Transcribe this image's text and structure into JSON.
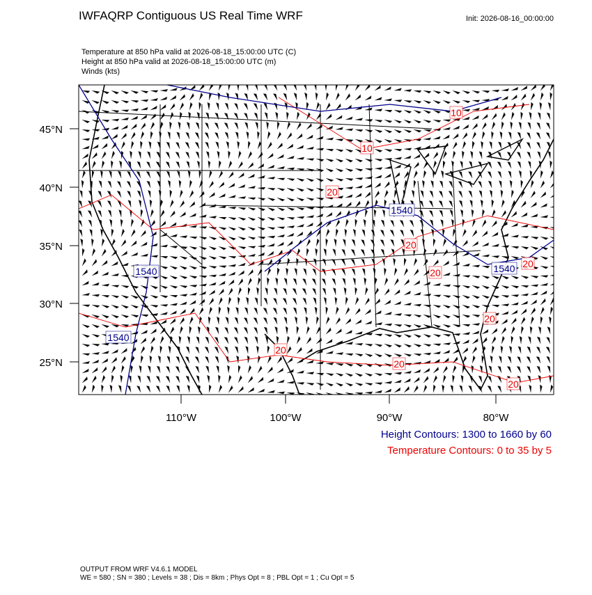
{
  "title": "IWFAQRP Contiguous US Real Time WRF",
  "init": "Init: 2026-08-16_00:00:00",
  "fields": [
    "Temperature at 850 hPa valid at 2026-08-18_15:00:00 UTC   (C)",
    "Height at 850 hPa valid at 2026-08-18_15:00:00 UTC   (m)",
    "Winds   (kts)"
  ],
  "map": {
    "lat_labels": [
      "45°N",
      "40°N",
      "35°N",
      "30°N",
      "25°N"
    ],
    "lon_labels": [
      "110°W",
      "100°W",
      "90°W",
      "80°W"
    ],
    "contour_labels": [
      "10",
      "10",
      "20",
      "1540",
      "20",
      "1540",
      "20",
      "1540",
      "20",
      "20",
      "1540",
      "20",
      "20",
      "20"
    ]
  },
  "legend": [
    "Height Contours: 1300 to 1660 by 60",
    "Temperature Contours: 0 to 35 by 5"
  ],
  "footer": [
    "OUTPUT FROM WRF V4.6.1 MODEL",
    "WE = 580 ; SN = 380 ; Levels = 38 ; Dis = 8km ; Phys Opt = 8 ; PBL Opt = 1 ; Cu Opt = 5"
  ]
}
